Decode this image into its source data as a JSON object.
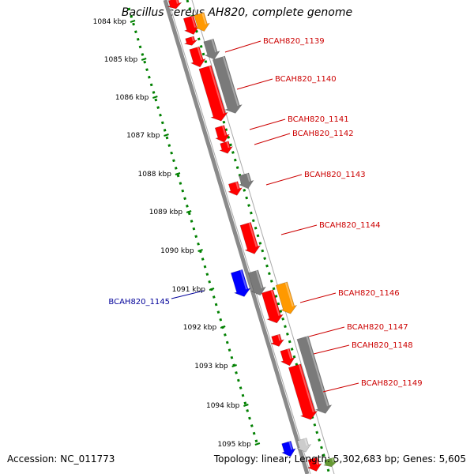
{
  "title": "Bacillus cereus AH820, complete genome",
  "accession_label": "Accession: NC_011773",
  "summary_label": "Topology: linear; Length: 5,302,683 bp; Genes: 5,605",
  "colors": {
    "red": "#ff0000",
    "gray": "#7a7a7a",
    "orange": "#ff9900",
    "blue": "#0000ff",
    "light_gray": "#cccccc",
    "olive": "#669933",
    "dots": "#008000",
    "forward_label": "#cc0000",
    "reverse_label": "#000099"
  },
  "ticks": [
    {
      "text": "1084 kbp"
    },
    {
      "text": "1085 kbp"
    },
    {
      "text": "1086 kbp"
    },
    {
      "text": "1087 kbp"
    },
    {
      "text": "1088 kbp"
    },
    {
      "text": "1089 kbp"
    },
    {
      "text": "1090 kbp"
    },
    {
      "text": "1091 kbp"
    },
    {
      "text": "1092 kbp"
    },
    {
      "text": "1093 kbp"
    },
    {
      "text": "1094 kbp"
    },
    {
      "text": "1095 kbp"
    }
  ],
  "gene_labels": [
    {
      "text": "BCAH820_1139",
      "strand": "forward"
    },
    {
      "text": "BCAH820_1140",
      "strand": "forward"
    },
    {
      "text": "BCAH820_1141",
      "strand": "forward"
    },
    {
      "text": "BCAH820_1142",
      "strand": "forward"
    },
    {
      "text": "BCAH820_1143",
      "strand": "forward"
    },
    {
      "text": "BCAH820_1144",
      "strand": "forward"
    },
    {
      "text": "BCAH820_1145",
      "strand": "reverse"
    },
    {
      "text": "BCAH820_1146",
      "strand": "forward"
    },
    {
      "text": "BCAH820_1147",
      "strand": "forward"
    },
    {
      "text": "BCAH820_1148",
      "strand": "forward"
    },
    {
      "text": "BCAH820_1149",
      "strand": "forward"
    }
  ]
}
